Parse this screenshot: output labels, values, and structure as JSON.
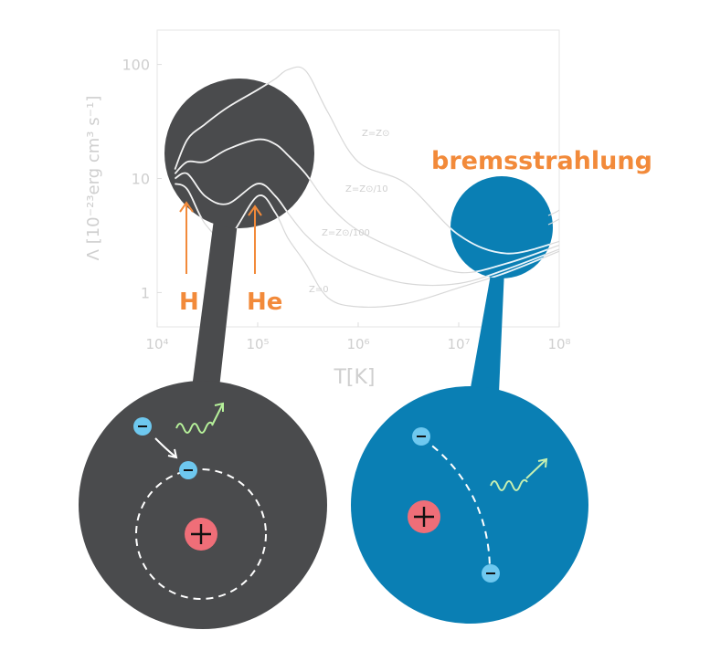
{
  "chart_data": {
    "type": "line",
    "xlabel": "T[K]",
    "ylabel": "Λ [10⁻²³erg cm³ s⁻¹]",
    "x_scale": "log",
    "y_scale": "log",
    "xlim": [
      10000,
      100000000
    ],
    "ylim": [
      0.5,
      200
    ],
    "x_ticks": [
      "10⁴",
      "10⁵",
      "10⁶",
      "10⁷",
      "10⁸"
    ],
    "y_ticks": [
      "1",
      "10",
      "100"
    ],
    "series": [
      {
        "name": "Z=Z⊙",
        "x": [
          15000,
          20000,
          30000,
          50000,
          100000,
          150000,
          200000,
          300000,
          500000,
          1000000,
          3000000,
          10000000,
          30000000,
          100000000
        ],
        "y": [
          12,
          22,
          30,
          42,
          60,
          75,
          90,
          88,
          38,
          14,
          9,
          3.2,
          2.2,
          2.8
        ]
      },
      {
        "name": "Z=Z⊙/10",
        "x": [
          15000,
          20000,
          30000,
          50000,
          100000,
          150000,
          200000,
          300000,
          500000,
          1000000,
          3000000,
          10000000,
          30000000,
          100000000
        ],
        "y": [
          11,
          14,
          14,
          18,
          22,
          20,
          16,
          11,
          6,
          3.5,
          2.2,
          1.5,
          1.8,
          2.6
        ]
      },
      {
        "name": "Z=Z⊙/100",
        "x": [
          15000,
          20000,
          30000,
          50000,
          100000,
          150000,
          200000,
          300000,
          500000,
          1000000,
          3000000,
          10000000,
          30000000,
          100000000
        ],
        "y": [
          10,
          11,
          7,
          6,
          9,
          7,
          5,
          3.2,
          2.2,
          1.6,
          1.2,
          1.2,
          1.6,
          2.4
        ]
      },
      {
        "name": "Z=0",
        "x": [
          15000,
          20000,
          30000,
          50000,
          100000,
          150000,
          200000,
          300000,
          500000,
          1000000,
          3000000,
          10000000,
          30000000,
          100000000
        ],
        "y": [
          9,
          8,
          4,
          3,
          7,
          5,
          3,
          1.8,
          0.9,
          0.75,
          0.8,
          1.1,
          1.5,
          2.3
        ]
      }
    ],
    "annotations": {
      "h_label": "H",
      "he_label": "He",
      "bremsstrahlung_label": "bremsstrahlung",
      "curve_labels": [
        "Z=Z⊙",
        "Z=Z⊙/10",
        "Z=Z⊙/100",
        "Z=0"
      ]
    }
  },
  "symbols": {
    "electron": "−",
    "proton": "+"
  },
  "colors": {
    "recombination_blob": "#4a4b4d",
    "bremsstrahlung_blob": "#0a7fb4",
    "electron": "#6ec8ef",
    "proton": "#ef6e78",
    "photon_recomb": "#b6f19a",
    "photon_brems": "#c6f0b2",
    "annotation": "#f28a3a"
  }
}
